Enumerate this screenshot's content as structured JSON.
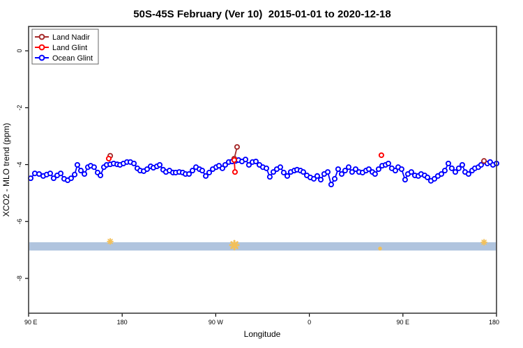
{
  "title": "50S-45S February (Ver 10)  2015-01-01 to 2020-12-18",
  "legend": {
    "items": [
      {
        "label": "Land Nadir",
        "color": "#A52A2A"
      },
      {
        "label": "Land Glint",
        "color": "#FF0000"
      },
      {
        "label": "Ocean Glint",
        "color": "#0000FF"
      }
    ]
  },
  "chart_data": {
    "type": "line",
    "title": "50S-45S February (Ver 10)  2015-01-01 to 2020-12-18",
    "xlabel": "Longitude",
    "ylabel": "XCO2 - MLO trend (ppm)",
    "x_axis": {
      "note": "longitude axis spans 450 deg, wrapping eastward from 90E",
      "ticks_deg": [
        0,
        90,
        180,
        270,
        360,
        450
      ],
      "tick_labels": [
        "90 E",
        "180",
        "90 W",
        "0",
        "90 E",
        "180"
      ],
      "range_deg": [
        0,
        450
      ]
    },
    "y_axis": {
      "tick_values": [
        0,
        -2,
        -4,
        -6,
        -8
      ],
      "tick_labels": [
        "0",
        "-2",
        "-4",
        "-6",
        "-8"
      ],
      "ylim": [
        -9.22,
        0.86
      ],
      "grid": "off"
    },
    "legend_position": "top-left",
    "band": {
      "name": "highlight-band",
      "color": "#B0C4DE",
      "v_top": -6.73,
      "v_bottom": -7.02
    },
    "flag_marks": {
      "color": "#F2C05A",
      "points_deg_v_size": [
        [
          78.5,
          -6.7,
          4
        ],
        [
          197.9,
          -6.83,
          6
        ],
        [
          338.0,
          -6.95,
          2
        ],
        [
          438.0,
          -6.73,
          4
        ]
      ]
    },
    "series": [
      {
        "name": "Land Nadir",
        "color": "#A52A2A",
        "segments": [
          [
            [
              78.5,
              -3.69
            ]
          ],
          [
            [
              200.5,
              -3.38
            ],
            [
              197.8,
              -3.79
            ]
          ],
          [
            [
              438.0,
              -3.87
            ]
          ]
        ]
      },
      {
        "name": "Land Glint",
        "color": "#FF0000",
        "segments": [
          [
            [
              77.1,
              -3.79
            ]
          ],
          [
            [
              197.8,
              -3.84
            ],
            [
              198.5,
              -4.26
            ]
          ],
          [
            [
              339.3,
              -3.67
            ]
          ]
        ]
      },
      {
        "name": "Ocean Glint",
        "color": "#0000FF",
        "segments": [
          [
            [
              2.0,
              -4.48
            ],
            [
              6.0,
              -4.31
            ],
            [
              10.1,
              -4.33
            ],
            [
              14.1,
              -4.4
            ],
            [
              17.4,
              -4.35
            ],
            [
              20.8,
              -4.31
            ],
            [
              24.1,
              -4.48
            ],
            [
              27.5,
              -4.38
            ],
            [
              30.9,
              -4.31
            ],
            [
              34.2,
              -4.5
            ],
            [
              37.6,
              -4.55
            ],
            [
              40.9,
              -4.48
            ],
            [
              44.3,
              -4.35
            ],
            [
              46.9,
              -4.01
            ],
            [
              50.3,
              -4.21
            ],
            [
              53.7,
              -4.33
            ],
            [
              57.0,
              -4.09
            ],
            [
              59.7,
              -4.04
            ],
            [
              63.0,
              -4.09
            ],
            [
              66.4,
              -4.28
            ],
            [
              69.1,
              -4.38
            ],
            [
              72.4,
              -4.09
            ],
            [
              75.1,
              -4.01
            ],
            [
              78.5,
              -3.99
            ],
            [
              81.8,
              -3.96
            ],
            [
              85.2,
              -3.99
            ],
            [
              87.9,
              -4.01
            ],
            [
              91.2,
              -3.96
            ],
            [
              94.6,
              -3.91
            ],
            [
              97.9,
              -3.91
            ],
            [
              101.3,
              -3.96
            ],
            [
              104.6,
              -4.13
            ],
            [
              107.3,
              -4.21
            ],
            [
              110.7,
              -4.23
            ],
            [
              114.0,
              -4.16
            ],
            [
              117.4,
              -4.06
            ],
            [
              120.0,
              -4.11
            ],
            [
              123.4,
              -4.06
            ],
            [
              126.1,
              -4.01
            ],
            [
              129.4,
              -4.18
            ],
            [
              132.1,
              -4.26
            ],
            [
              135.5,
              -4.21
            ],
            [
              138.8,
              -4.28
            ],
            [
              141.5,
              -4.28
            ],
            [
              144.9,
              -4.26
            ],
            [
              148.2,
              -4.28
            ],
            [
              150.9,
              -4.33
            ],
            [
              154.3,
              -4.33
            ],
            [
              157.6,
              -4.21
            ],
            [
              161.0,
              -4.09
            ],
            [
              164.3,
              -4.16
            ],
            [
              167.0,
              -4.21
            ],
            [
              170.4,
              -4.4
            ],
            [
              173.7,
              -4.28
            ],
            [
              177.1,
              -4.16
            ],
            [
              180.4,
              -4.09
            ],
            [
              183.1,
              -4.04
            ],
            [
              186.4,
              -4.13
            ],
            [
              189.1,
              -4.01
            ],
            [
              192.5,
              -3.91
            ],
            [
              195.8,
              -3.89
            ],
            [
              199.2,
              -3.87
            ],
            [
              201.9,
              -3.84
            ],
            [
              205.2,
              -3.89
            ],
            [
              208.6,
              -3.82
            ],
            [
              211.9,
              -4.01
            ],
            [
              215.3,
              -3.91
            ],
            [
              218.6,
              -3.89
            ],
            [
              222.0,
              -4.01
            ],
            [
              225.3,
              -4.09
            ],
            [
              228.7,
              -4.13
            ],
            [
              232.0,
              -4.43
            ],
            [
              235.4,
              -4.26
            ],
            [
              238.7,
              -4.16
            ],
            [
              242.1,
              -4.09
            ],
            [
              245.4,
              -4.28
            ],
            [
              248.8,
              -4.4
            ],
            [
              252.1,
              -4.26
            ],
            [
              255.5,
              -4.21
            ],
            [
              258.2,
              -4.18
            ],
            [
              261.5,
              -4.21
            ],
            [
              264.2,
              -4.26
            ],
            [
              267.6,
              -4.38
            ],
            [
              270.9,
              -4.45
            ],
            [
              274.3,
              -4.5
            ],
            [
              277.6,
              -4.4
            ],
            [
              281.0,
              -4.53
            ],
            [
              284.3,
              -4.33
            ],
            [
              287.7,
              -4.26
            ],
            [
              291.0,
              -4.7
            ],
            [
              294.4,
              -4.5
            ],
            [
              297.7,
              -4.16
            ],
            [
              301.1,
              -4.33
            ],
            [
              304.4,
              -4.21
            ],
            [
              307.8,
              -4.09
            ],
            [
              311.1,
              -4.26
            ],
            [
              314.5,
              -4.16
            ],
            [
              317.8,
              -4.26
            ],
            [
              321.2,
              -4.28
            ],
            [
              324.5,
              -4.21
            ],
            [
              327.2,
              -4.16
            ],
            [
              330.6,
              -4.26
            ],
            [
              333.2,
              -4.33
            ],
            [
              336.6,
              -4.16
            ],
            [
              340.0,
              -4.04
            ],
            [
              343.3,
              -4.01
            ],
            [
              346.0,
              -3.96
            ],
            [
              349.3,
              -4.13
            ],
            [
              352.7,
              -4.21
            ],
            [
              355.4,
              -4.09
            ],
            [
              358.7,
              -4.16
            ],
            [
              362.1,
              -4.53
            ],
            [
              364.8,
              -4.33
            ],
            [
              368.1,
              -4.26
            ],
            [
              371.5,
              -4.38
            ],
            [
              374.8,
              -4.4
            ],
            [
              377.5,
              -4.33
            ],
            [
              380.9,
              -4.38
            ],
            [
              383.6,
              -4.45
            ],
            [
              386.9,
              -4.57
            ],
            [
              390.3,
              -4.5
            ],
            [
              393.6,
              -4.4
            ],
            [
              397.0,
              -4.33
            ],
            [
              400.3,
              -4.21
            ],
            [
              403.7,
              -3.96
            ],
            [
              407.0,
              -4.13
            ],
            [
              410.4,
              -4.26
            ],
            [
              413.7,
              -4.13
            ],
            [
              417.1,
              -4.01
            ],
            [
              419.8,
              -4.26
            ],
            [
              423.1,
              -4.33
            ],
            [
              426.5,
              -4.21
            ],
            [
              429.2,
              -4.13
            ],
            [
              432.5,
              -4.09
            ],
            [
              435.2,
              -4.01
            ],
            [
              437.9,
              -3.89
            ],
            [
              441.2,
              -3.96
            ],
            [
              443.9,
              -3.91
            ],
            [
              446.6,
              -4.01
            ],
            [
              450.0,
              -3.96
            ]
          ]
        ]
      }
    ]
  }
}
